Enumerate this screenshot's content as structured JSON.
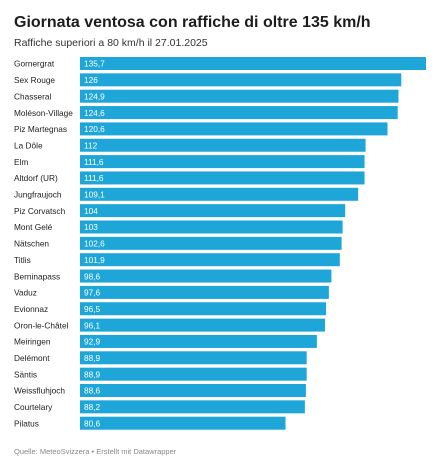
{
  "header": {
    "title": "Giornata ventosa con raffiche di oltre 135 km/h",
    "subtitle": "Raffiche superiori a 80 km/h il 27.01.2025"
  },
  "footer": {
    "source": "Quelle: MeteoSvizzera • Erstellt mit Datawrapper"
  },
  "colors": {
    "bar": "#1ea6d9",
    "row_label": "#222222",
    "value_label": "#ffffff"
  },
  "chart_data": {
    "type": "bar",
    "orientation": "horizontal",
    "title": "Giornata ventosa con raffiche di oltre 135 km/h",
    "subtitle": "Raffiche superiori a 80 km/h il 27.01.2025",
    "xlim": [
      0,
      135.7
    ],
    "grid": false,
    "legend": "none",
    "categories": [
      "Gornergrat",
      "Sex Rouge",
      "Chasseral",
      "Moléson-Village",
      "Piz Martegnas",
      "La Dôle",
      "Elm",
      "Altdorf (UR)",
      "Jungfraujoch",
      "Piz Corvatsch",
      "Mont Gelé",
      "Nätschen",
      "Titlis",
      "Berninapass",
      "Vaduz",
      "Evionnaz",
      "Oron-le-Châtel",
      "Meiringen",
      "Delémont",
      "Säntis",
      "Weissfluhjoch",
      "Courtelary",
      "Pilatus"
    ],
    "values": [
      135.7,
      126,
      124.9,
      124.6,
      120.6,
      112,
      111.6,
      111.6,
      109.1,
      104,
      103,
      102.6,
      101.9,
      98.6,
      97.6,
      96.5,
      96.1,
      92.9,
      88.9,
      88.9,
      88.6,
      88.2,
      80.6
    ],
    "value_labels": [
      "135,7",
      "126",
      "124,9",
      "124,6",
      "120,6",
      "112",
      "111,6",
      "111,6",
      "109,1",
      "104",
      "103",
      "102,6",
      "101,9",
      "98,6",
      "97,6",
      "96,5",
      "96,1",
      "92,9",
      "88,9",
      "88,9",
      "88,6",
      "88,2",
      "80,6"
    ]
  }
}
